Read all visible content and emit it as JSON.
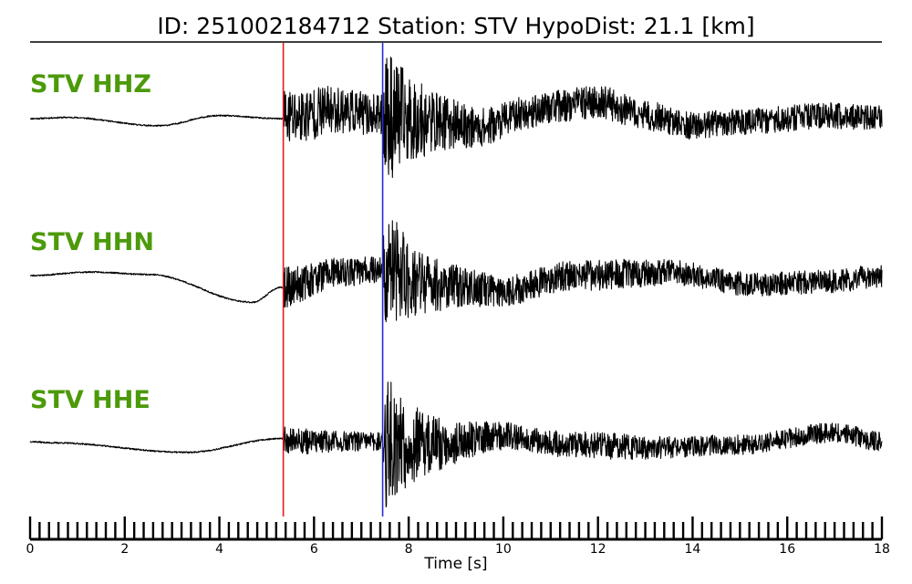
{
  "title": "ID: 251002184712   Station: STV   HypoDist:    21.1 [km]",
  "chart_data": {
    "type": "line",
    "xlabel": "Time [s]",
    "xlim": [
      0,
      18
    ],
    "xticks": [
      0,
      2,
      4,
      6,
      8,
      10,
      12,
      14,
      16,
      18
    ],
    "minor_tick_step": 0.2,
    "picks": [
      {
        "phase": "P",
        "time": 5.35,
        "color": "#e8191c"
      },
      {
        "phase": "S",
        "time": 7.45,
        "color": "#2b2bd4"
      }
    ],
    "label_color": "#4c9a0a",
    "trace_color": "#000000",
    "series": [
      {
        "name": "STV HHZ",
        "p_energy": 0.55,
        "s_peak": 1.25,
        "coda": 0.22,
        "bg": [
          [
            0,
            0
          ],
          [
            0.8,
            0.02
          ],
          [
            2.7,
            -0.12
          ],
          [
            4,
            0.05
          ],
          [
            5.3,
            0
          ],
          [
            6.5,
            0.15
          ],
          [
            7.4,
            0.05
          ],
          [
            8.5,
            -0.05
          ],
          [
            9.5,
            -0.15
          ],
          [
            10.5,
            0.1
          ],
          [
            11,
            0.2
          ],
          [
            12,
            0.28
          ],
          [
            13,
            0.05
          ],
          [
            14,
            -0.12
          ],
          [
            15,
            -0.05
          ],
          [
            17,
            0.05
          ],
          [
            18,
            0
          ]
        ],
        "seed": 11
      },
      {
        "name": "STV HHN",
        "p_energy": 0.35,
        "s_peak": 1.15,
        "coda": 0.2,
        "bg": [
          [
            0,
            0
          ],
          [
            1.3,
            0.06
          ],
          [
            2.5,
            0.02
          ],
          [
            4.7,
            -0.45
          ],
          [
            5.3,
            -0.2
          ],
          [
            6.5,
            0.05
          ],
          [
            7.4,
            0.1
          ],
          [
            8.5,
            -0.15
          ],
          [
            10,
            -0.25
          ],
          [
            11.5,
            0
          ],
          [
            13.5,
            0.05
          ],
          [
            15.3,
            -0.15
          ],
          [
            17,
            -0.1
          ],
          [
            18,
            0
          ]
        ],
        "seed": 23
      },
      {
        "name": "STV HHE",
        "p_energy": 0.25,
        "s_peak": 1.2,
        "coda": 0.17,
        "bg": [
          [
            0,
            0
          ],
          [
            0.5,
            -0.02
          ],
          [
            3.3,
            -0.18
          ],
          [
            5.3,
            0.05
          ],
          [
            6,
            0
          ],
          [
            7.4,
            0
          ],
          [
            8.5,
            -0.05
          ],
          [
            10,
            0.1
          ],
          [
            11.5,
            -0.05
          ],
          [
            13,
            -0.1
          ],
          [
            15,
            -0.05
          ],
          [
            17,
            0.15
          ],
          [
            18,
            0
          ]
        ],
        "seed": 37
      }
    ]
  }
}
